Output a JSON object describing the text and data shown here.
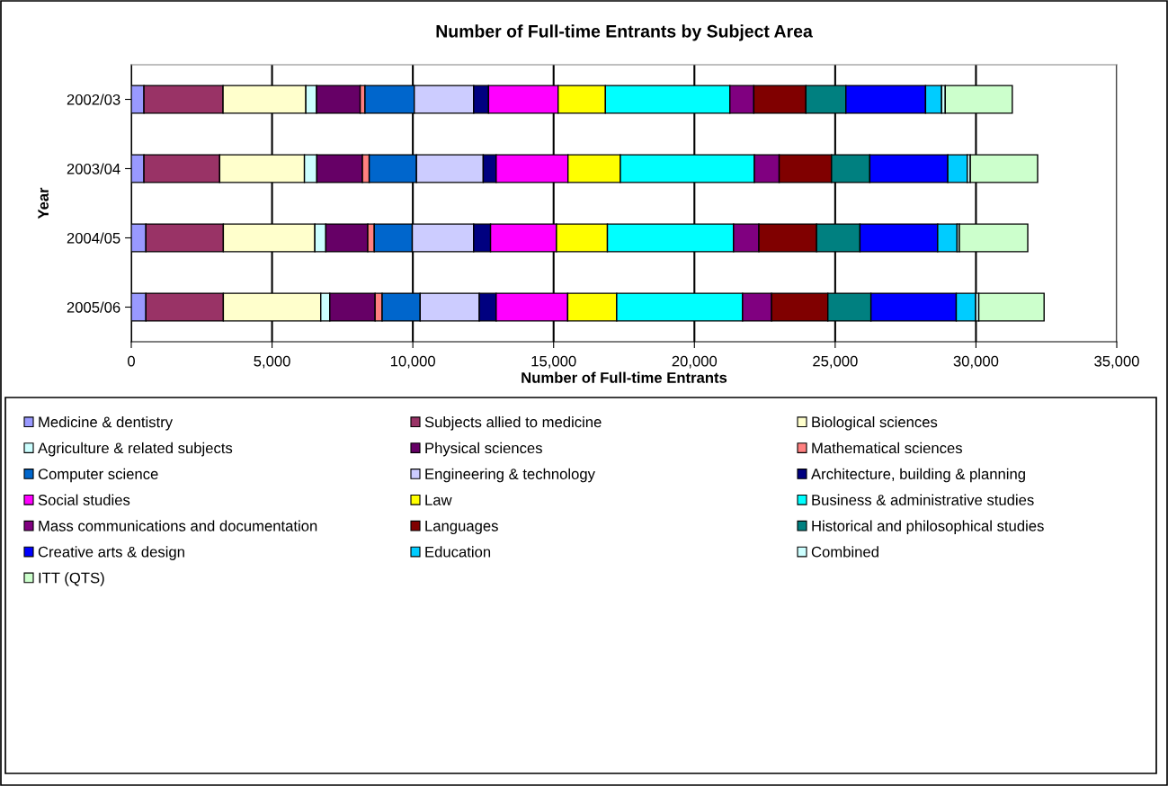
{
  "chart_data": {
    "type": "bar",
    "orientation": "horizontal",
    "stacked": true,
    "title": "Number of Full-time Entrants by Subject Area",
    "xlabel": "Number of Full-time Entrants",
    "ylabel": "Year",
    "categories": [
      "2002/03",
      "2003/04",
      "2004/05",
      "2005/06"
    ],
    "xlim": [
      0,
      35000
    ],
    "xticks": [
      0,
      {
        "value": 5000,
        "label": "5,000"
      },
      {
        "value": 10000,
        "label": "10,000"
      },
      {
        "value": 15000,
        "label": "15,000"
      },
      {
        "value": 20000,
        "label": "20,000"
      },
      {
        "value": 25000,
        "label": "25,000"
      },
      {
        "value": 30000,
        "label": "30,000"
      },
      {
        "value": 35000,
        "label": "35,000"
      }
    ],
    "grid": "x",
    "legend": "bottom",
    "series": [
      {
        "name": "Medicine & dentistry",
        "color": "#9999ff",
        "values": [
          450,
          450,
          520,
          520
        ]
      },
      {
        "name": "Subjects allied to medicine",
        "color": "#993366",
        "values": [
          2810,
          2690,
          2750,
          2750
        ]
      },
      {
        "name": "Biological sciences",
        "color": "#ffffcc",
        "values": [
          2940,
          3010,
          3250,
          3460
        ]
      },
      {
        "name": "Agriculture & related subjects",
        "color": "#ccffff",
        "values": [
          380,
          440,
          390,
          320
        ]
      },
      {
        "name": "Physical sciences",
        "color": "#660066",
        "values": [
          1550,
          1620,
          1490,
          1610
        ]
      },
      {
        "name": "Mathematical sciences",
        "color": "#ff8080",
        "values": [
          170,
          240,
          230,
          250
        ]
      },
      {
        "name": "Computer science",
        "color": "#0066cc",
        "values": [
          1750,
          1680,
          1350,
          1350
        ]
      },
      {
        "name": "Engineering & technology",
        "color": "#ccccff",
        "values": [
          2110,
          2370,
          2180,
          2100
        ]
      },
      {
        "name": "Architecture, building & planning",
        "color": "#000080",
        "values": [
          530,
          460,
          600,
          600
        ]
      },
      {
        "name": "Social studies",
        "color": "#ff00ff",
        "values": [
          2470,
          2550,
          2340,
          2540
        ]
      },
      {
        "name": "Law",
        "color": "#ffff00",
        "values": [
          1680,
          1860,
          1810,
          1740
        ]
      },
      {
        "name": "Business & administrative studies",
        "color": "#00ffff",
        "values": [
          4420,
          4760,
          4480,
          4470
        ]
      },
      {
        "name": "Mass communications and documentation",
        "color": "#800080",
        "values": [
          850,
          880,
          900,
          1030
        ]
      },
      {
        "name": "Languages",
        "color": "#800000",
        "values": [
          1850,
          1860,
          2050,
          2000
        ]
      },
      {
        "name": "Historical and philosophical studies",
        "color": "#008080",
        "values": [
          1420,
          1360,
          1540,
          1530
        ]
      },
      {
        "name": "Creative arts & design",
        "color": "#0000ff",
        "values": [
          2830,
          2770,
          2760,
          3030
        ]
      },
      {
        "name": "Education",
        "color": "#00ccff",
        "values": [
          570,
          690,
          690,
          690
        ]
      },
      {
        "name": "Combined",
        "color": "#ccffff",
        "values": [
          130,
          110,
          80,
          110
        ]
      },
      {
        "name": "ITT (QTS)",
        "color": "#ccffcc",
        "values": [
          2380,
          2390,
          2430,
          2320
        ]
      }
    ]
  }
}
